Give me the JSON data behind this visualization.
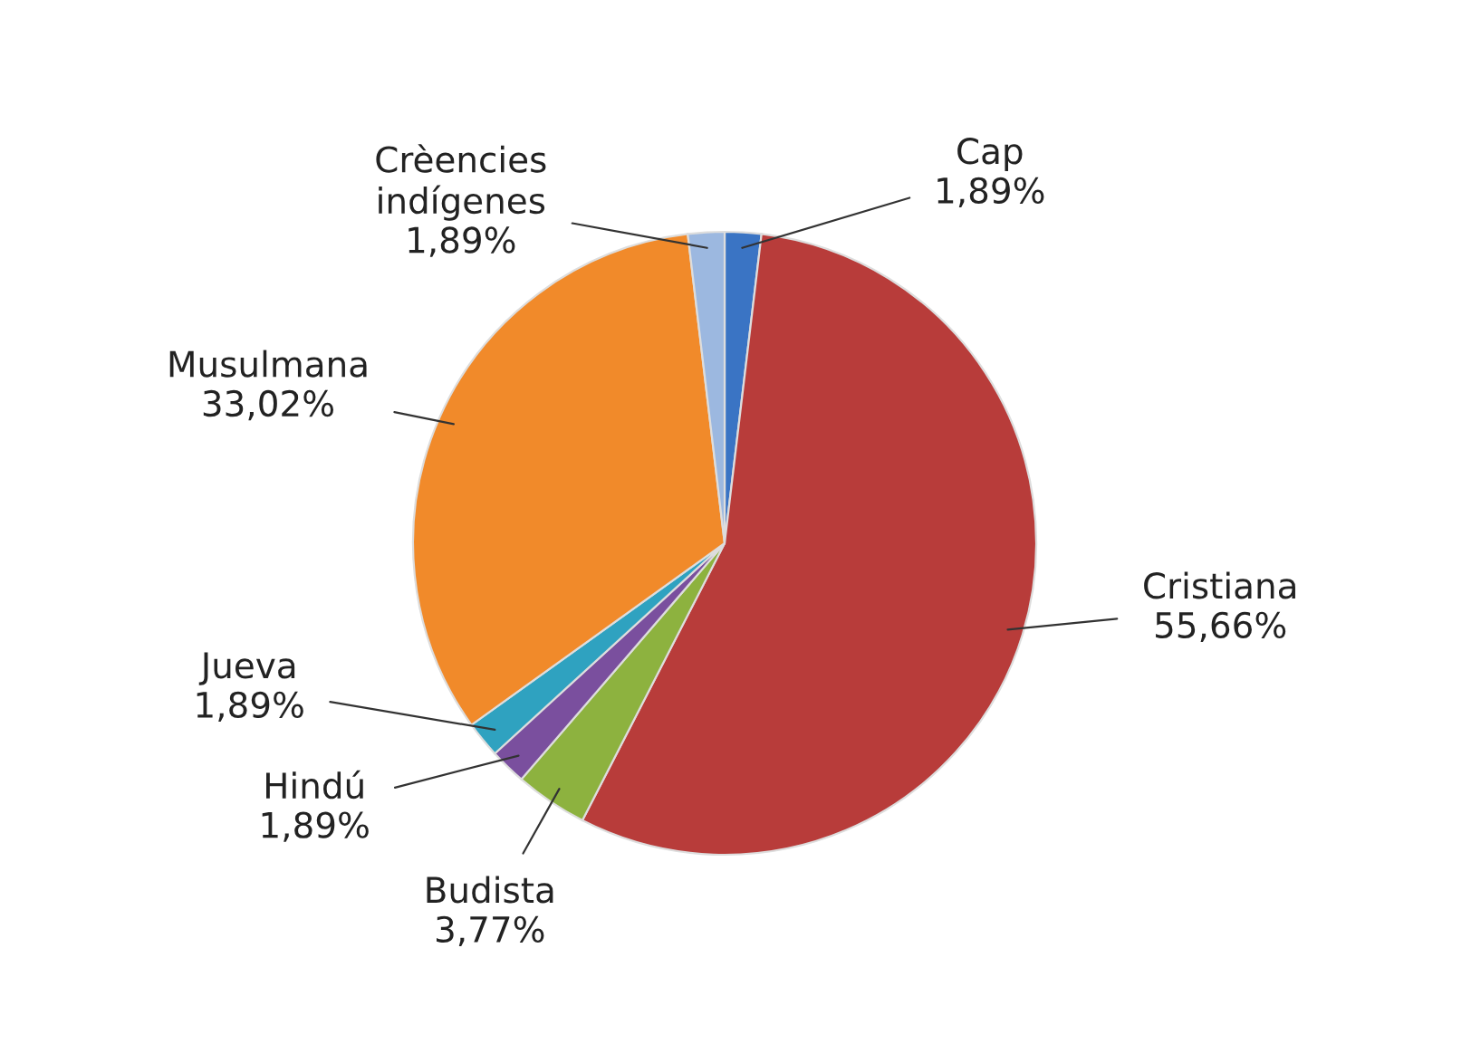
{
  "chart_data": {
    "type": "pie",
    "categories": [
      "Cap",
      "Cristiana",
      "Budista",
      "Hindú",
      "Jueva",
      "Musulmana",
      "Crèencies\nindígenes"
    ],
    "values": [
      1.89,
      55.66,
      3.77,
      1.89,
      1.89,
      33.02,
      1.89
    ],
    "value_labels": [
      "1,89%",
      "55,66%",
      "3,77%",
      "1,89%",
      "1,89%",
      "33,02%",
      "1,89%"
    ],
    "colors": [
      "#3a74c4",
      "#b83c3a",
      "#8db23f",
      "#7a4f9e",
      "#2fa2c0",
      "#f18a2a",
      "#9cb8e0"
    ]
  }
}
